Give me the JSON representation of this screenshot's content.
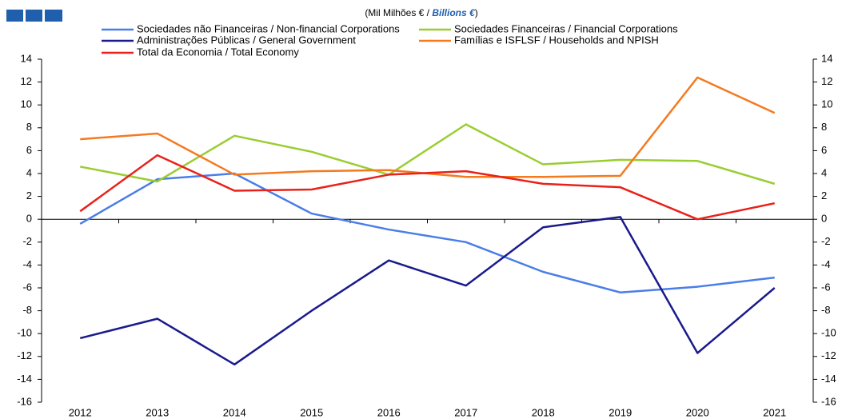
{
  "chart_data": {
    "type": "line",
    "title_parts": [
      "(Mil Milhões € / ",
      "Billions €",
      ")"
    ],
    "categories": [
      "2012",
      "2013",
      "2014",
      "2015",
      "2016",
      "2017",
      "2018",
      "2019",
      "2020",
      "2021"
    ],
    "series": [
      {
        "name": "Sociedades não Financeiras / Non-financial Corporations",
        "color": "#4a7ee8",
        "values": [
          -0.4,
          3.5,
          4.0,
          0.5,
          -0.9,
          -2.0,
          -4.6,
          -6.4,
          -5.9,
          -5.1
        ]
      },
      {
        "name": "Sociedades Financeiras / Financial Corporations",
        "color": "#9acd32",
        "values": [
          4.6,
          3.3,
          7.3,
          5.9,
          3.9,
          8.3,
          4.8,
          5.2,
          5.1,
          3.1
        ]
      },
      {
        "name": "Administrações Públicas / General Government",
        "color": "#1a1a8c",
        "values": [
          -10.4,
          -8.7,
          -12.7,
          -8.0,
          -3.6,
          -5.8,
          -0.7,
          0.2,
          -11.7,
          -6.0
        ]
      },
      {
        "name": "Famílias e ISFLSF / Households and NPISH",
        "color": "#f47a20",
        "values": [
          7.0,
          7.5,
          3.9,
          4.2,
          4.3,
          3.7,
          3.7,
          3.8,
          12.4,
          9.3
        ]
      },
      {
        "name": "Total da Economia / Total Economy",
        "color": "#e8221b",
        "values": [
          0.7,
          5.6,
          2.5,
          2.6,
          3.9,
          4.2,
          3.1,
          2.8,
          0.0,
          1.4
        ]
      }
    ],
    "ylim": [
      -16,
      14
    ],
    "yticks": [
      -16,
      -14,
      -12,
      -10,
      -8,
      -6,
      -4,
      -2,
      0,
      2,
      4,
      6,
      8,
      10,
      12,
      14
    ],
    "y2lim": [
      -16,
      14
    ],
    "y2ticks": [
      -16,
      -14,
      -12,
      -10,
      -8,
      -6,
      -4,
      -2,
      0,
      2,
      4,
      6,
      8,
      10,
      12,
      14
    ],
    "grid": false
  }
}
